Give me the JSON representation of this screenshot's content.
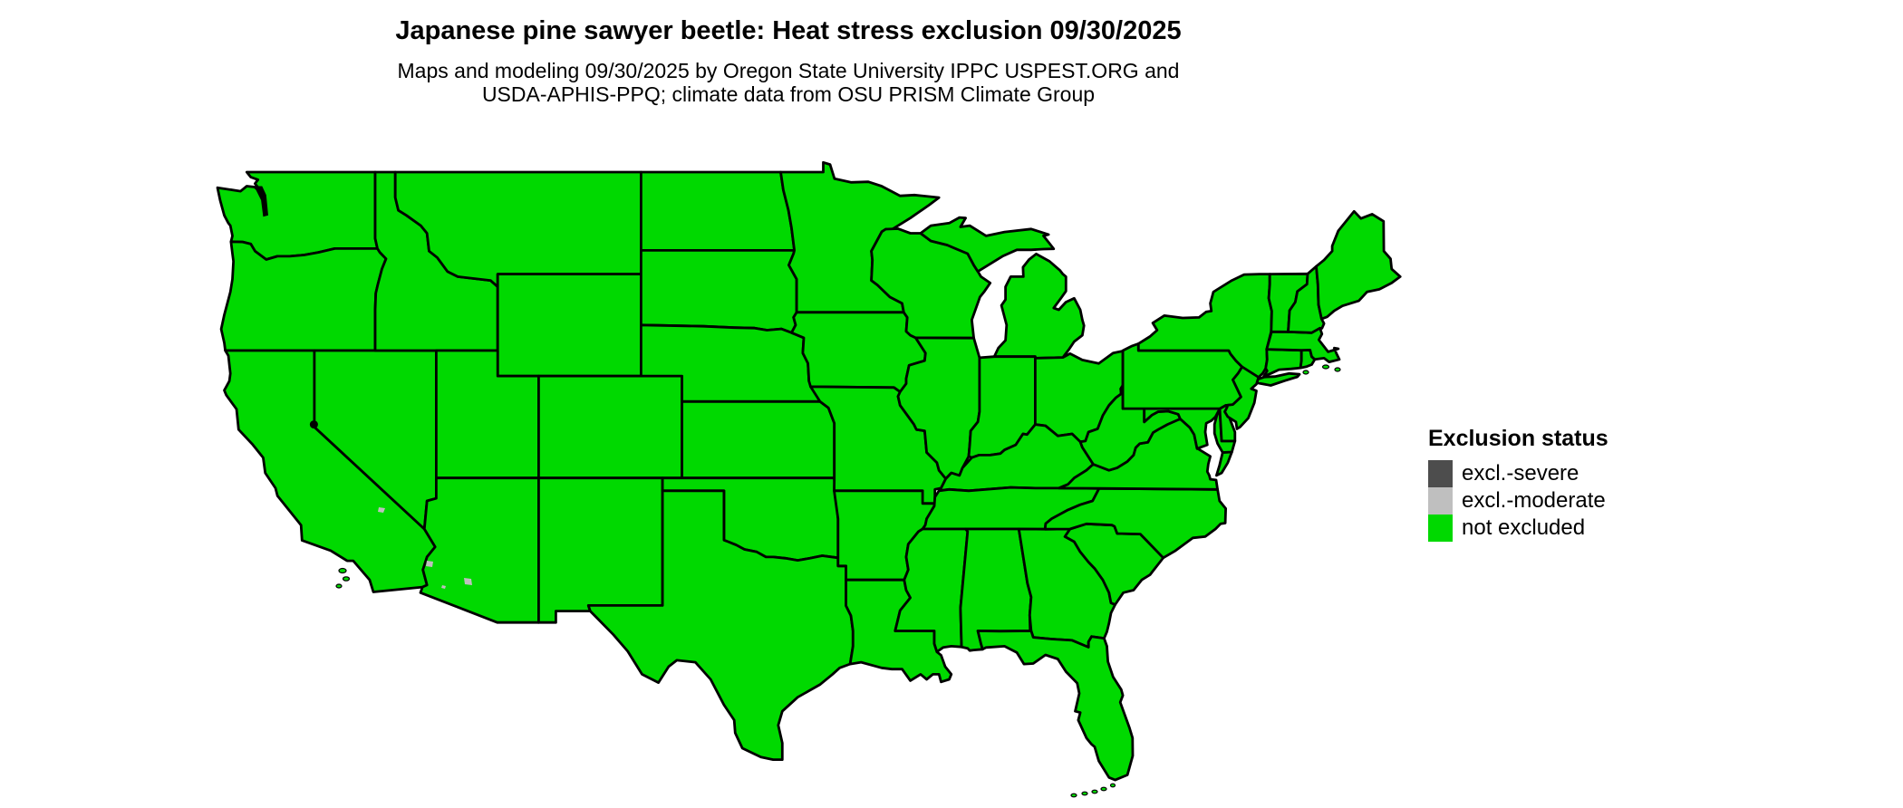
{
  "title": "Japanese pine sawyer beetle: Heat stress exclusion 09/30/2025",
  "subtitle_line1": "Maps and modeling 09/30/2025 by Oregon State University IPPC USPEST.ORG and",
  "subtitle_line2": "USDA-APHIS-PPQ; climate data from OSU PRISM Climate Group",
  "legend": {
    "title": "Exclusion status",
    "items": [
      {
        "label": "excl.-severe",
        "status": "excl.-severe",
        "color": "#4d4d4d"
      },
      {
        "label": "excl.-moderate",
        "status": "excl.-moderate",
        "color": "#bfbfbf"
      },
      {
        "label": "not excluded",
        "status": "not excluded",
        "color": "#00d900"
      }
    ]
  },
  "map": {
    "region": "Continental United States",
    "border_color": "#000000",
    "background_color": "#ffffff",
    "default_status": "not excluded",
    "states": [
      {
        "abbr": "WA",
        "name": "Washington",
        "status": "not excluded"
      },
      {
        "abbr": "OR",
        "name": "Oregon",
        "status": "not excluded"
      },
      {
        "abbr": "CA",
        "name": "California",
        "status": "not excluded"
      },
      {
        "abbr": "NV",
        "name": "Nevada",
        "status": "not excluded"
      },
      {
        "abbr": "ID",
        "name": "Idaho",
        "status": "not excluded"
      },
      {
        "abbr": "MT",
        "name": "Montana",
        "status": "not excluded"
      },
      {
        "abbr": "WY",
        "name": "Wyoming",
        "status": "not excluded"
      },
      {
        "abbr": "UT",
        "name": "Utah",
        "status": "not excluded"
      },
      {
        "abbr": "CO",
        "name": "Colorado",
        "status": "not excluded"
      },
      {
        "abbr": "AZ",
        "name": "Arizona",
        "status": "not excluded"
      },
      {
        "abbr": "NM",
        "name": "New Mexico",
        "status": "not excluded"
      },
      {
        "abbr": "ND",
        "name": "North Dakota",
        "status": "not excluded"
      },
      {
        "abbr": "SD",
        "name": "South Dakota",
        "status": "not excluded"
      },
      {
        "abbr": "NE",
        "name": "Nebraska",
        "status": "not excluded"
      },
      {
        "abbr": "KS",
        "name": "Kansas",
        "status": "not excluded"
      },
      {
        "abbr": "OK",
        "name": "Oklahoma",
        "status": "not excluded"
      },
      {
        "abbr": "TX",
        "name": "Texas",
        "status": "not excluded"
      },
      {
        "abbr": "MN",
        "name": "Minnesota",
        "status": "not excluded"
      },
      {
        "abbr": "IA",
        "name": "Iowa",
        "status": "not excluded"
      },
      {
        "abbr": "MO",
        "name": "Missouri",
        "status": "not excluded"
      },
      {
        "abbr": "AR",
        "name": "Arkansas",
        "status": "not excluded"
      },
      {
        "abbr": "LA",
        "name": "Louisiana",
        "status": "not excluded"
      },
      {
        "abbr": "WI",
        "name": "Wisconsin",
        "status": "not excluded"
      },
      {
        "abbr": "IL",
        "name": "Illinois",
        "status": "not excluded"
      },
      {
        "abbr": "MI",
        "name": "Michigan",
        "status": "not excluded"
      },
      {
        "abbr": "IN",
        "name": "Indiana",
        "status": "not excluded"
      },
      {
        "abbr": "OH",
        "name": "Ohio",
        "status": "not excluded"
      },
      {
        "abbr": "KY",
        "name": "Kentucky",
        "status": "not excluded"
      },
      {
        "abbr": "TN",
        "name": "Tennessee",
        "status": "not excluded"
      },
      {
        "abbr": "MS",
        "name": "Mississippi",
        "status": "not excluded"
      },
      {
        "abbr": "AL",
        "name": "Alabama",
        "status": "not excluded"
      },
      {
        "abbr": "GA",
        "name": "Georgia",
        "status": "not excluded"
      },
      {
        "abbr": "FL",
        "name": "Florida",
        "status": "not excluded"
      },
      {
        "abbr": "SC",
        "name": "South Carolina",
        "status": "not excluded"
      },
      {
        "abbr": "NC",
        "name": "North Carolina",
        "status": "not excluded"
      },
      {
        "abbr": "VA",
        "name": "Virginia",
        "status": "not excluded"
      },
      {
        "abbr": "WV",
        "name": "West Virginia",
        "status": "not excluded"
      },
      {
        "abbr": "MD",
        "name": "Maryland",
        "status": "not excluded"
      },
      {
        "abbr": "DE",
        "name": "Delaware",
        "status": "not excluded"
      },
      {
        "abbr": "PA",
        "name": "Pennsylvania",
        "status": "not excluded"
      },
      {
        "abbr": "NY",
        "name": "New York",
        "status": "not excluded"
      },
      {
        "abbr": "NJ",
        "name": "New Jersey",
        "status": "not excluded"
      },
      {
        "abbr": "CT",
        "name": "Connecticut",
        "status": "not excluded"
      },
      {
        "abbr": "RI",
        "name": "Rhode Island",
        "status": "not excluded"
      },
      {
        "abbr": "MA",
        "name": "Massachusetts",
        "status": "not excluded"
      },
      {
        "abbr": "VT",
        "name": "Vermont",
        "status": "not excluded"
      },
      {
        "abbr": "NH",
        "name": "New Hampshire",
        "status": "not excluded"
      },
      {
        "abbr": "ME",
        "name": "Maine",
        "status": "not excluded"
      }
    ],
    "details": [
      {
        "area": "Death Valley area, California",
        "status": "excl.-moderate"
      },
      {
        "area": "Lower Colorado River desert, Arizona",
        "status": "excl.-moderate"
      }
    ]
  }
}
